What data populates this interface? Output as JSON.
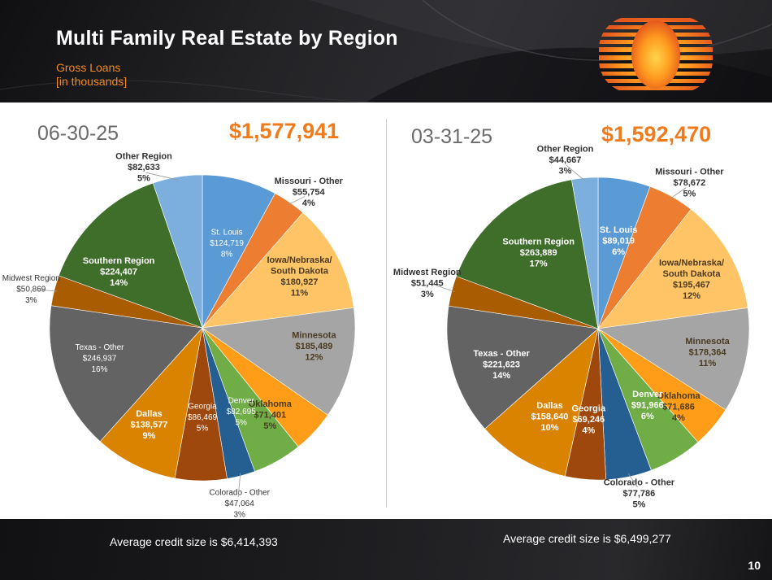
{
  "title": "Multi Family Real Estate by Region",
  "subtitle_line1": "Gross Loans",
  "subtitle_line2": "[in thousands]",
  "page_number": "10",
  "logo_icon": "sun-stripes-logo",
  "colors": {
    "St. Louis": "#5b9bd5",
    "Missouri - Other": "#ed7d31",
    "Iowa/Nebraska/South Dakota": "#ffc466",
    "Minnesota": "#a5a5a5",
    "Oklahoma": "#ff9d18",
    "Denver": "#70ad47",
    "Colorado - Other": "#255e91",
    "Georgia": "#9e480e",
    "Dallas": "#d98300",
    "Texas - Other": "#636363",
    "Midwest Region": "#a95c00",
    "Southern Region": "#3f6e2b",
    "Other Region": "#7cafdd",
    "accent_total": "#f07b1c"
  },
  "chart_data": [
    {
      "type": "pie",
      "period": "06-30-25",
      "total": "$1,577,941",
      "average_note": "Average credit size is $6,414,393",
      "slices": [
        {
          "name": "St. Louis",
          "label": "St. Louis",
          "amount": "$124,719",
          "pct": "8%",
          "value": 124719
        },
        {
          "name": "Missouri - Other",
          "label": "Missouri - Other",
          "amount": "$55,754",
          "pct": "4%",
          "value": 55754
        },
        {
          "name": "Iowa/Nebraska/South Dakota",
          "label": "Iowa/Nebraska/ South Dakota",
          "amount": "$180,927",
          "pct": "11%",
          "value": 180927
        },
        {
          "name": "Minnesota",
          "label": "Minnesota",
          "amount": "$185,489",
          "pct": "12%",
          "value": 185489
        },
        {
          "name": "Oklahoma",
          "label": "Oklahoma",
          "amount": "$71,401",
          "pct": "5%",
          "value": 71401
        },
        {
          "name": "Denver",
          "label": "Denver",
          "amount": "$82,695",
          "pct": "5%",
          "value": 82695
        },
        {
          "name": "Colorado - Other",
          "label": "Colorado - Other",
          "amount": "$47,064",
          "pct": "3%",
          "value": 47064
        },
        {
          "name": "Georgia",
          "label": "Georgia",
          "amount": "$86,469",
          "pct": "5%",
          "value": 86469
        },
        {
          "name": "Dallas",
          "label": "Dallas",
          "amount": "$138,577",
          "pct": "9%",
          "value": 138577
        },
        {
          "name": "Texas - Other",
          "label": "Texas - Other",
          "amount": "$246,937",
          "pct": "16%",
          "value": 246937
        },
        {
          "name": "Midwest Region",
          "label": "Midwest Region",
          "amount": "$50,869",
          "pct": "3%",
          "value": 50869
        },
        {
          "name": "Southern Region",
          "label": "Southern Region",
          "amount": "$224,407",
          "pct": "14%",
          "value": 224407
        },
        {
          "name": "Other Region",
          "label": "Other Region",
          "amount": "$82,633",
          "pct": "5%",
          "value": 82633
        }
      ]
    },
    {
      "type": "pie",
      "period": "03-31-25",
      "total": "$1,592,470",
      "average_note": "Average credit size is $6,499,277",
      "slices": [
        {
          "name": "St. Louis",
          "label": "St. Louis",
          "amount": "$89,019",
          "pct": "6%",
          "value": 89019
        },
        {
          "name": "Missouri - Other",
          "label": "Missouri - Other",
          "amount": "$78,672",
          "pct": "5%",
          "value": 78672
        },
        {
          "name": "Iowa/Nebraska/South Dakota",
          "label": "Iowa/Nebraska/ South Dakota",
          "amount": "$195,467",
          "pct": "12%",
          "value": 195467
        },
        {
          "name": "Minnesota",
          "label": "Minnesota",
          "amount": "$178,364",
          "pct": "11%",
          "value": 178364
        },
        {
          "name": "Oklahoma",
          "label": "Oklahoma",
          "amount": "$71,686",
          "pct": "4%",
          "value": 71686
        },
        {
          "name": "Denver",
          "label": "Denver",
          "amount": "$91,966",
          "pct": "6%",
          "value": 91966
        },
        {
          "name": "Colorado - Other",
          "label": "Colorado - Other",
          "amount": "$77,786",
          "pct": "5%",
          "value": 77786
        },
        {
          "name": "Georgia",
          "label": "Georgia",
          "amount": "$69,246",
          "pct": "4%",
          "value": 69246
        },
        {
          "name": "Dallas",
          "label": "Dallas",
          "amount": "$158,640",
          "pct": "10%",
          "value": 158640
        },
        {
          "name": "Texas - Other",
          "label": "Texas - Other",
          "amount": "$221,623",
          "pct": "14%",
          "value": 221623
        },
        {
          "name": "Midwest Region",
          "label": "Midwest Region",
          "amount": "$51,445",
          "pct": "3%",
          "value": 51445
        },
        {
          "name": "Southern Region",
          "label": "Southern Region",
          "amount": "$263,889",
          "pct": "17%",
          "value": 263889
        },
        {
          "name": "Other Region",
          "label": "Other Region",
          "amount": "$44,667",
          "pct": "3%",
          "value": 44667
        }
      ]
    }
  ]
}
